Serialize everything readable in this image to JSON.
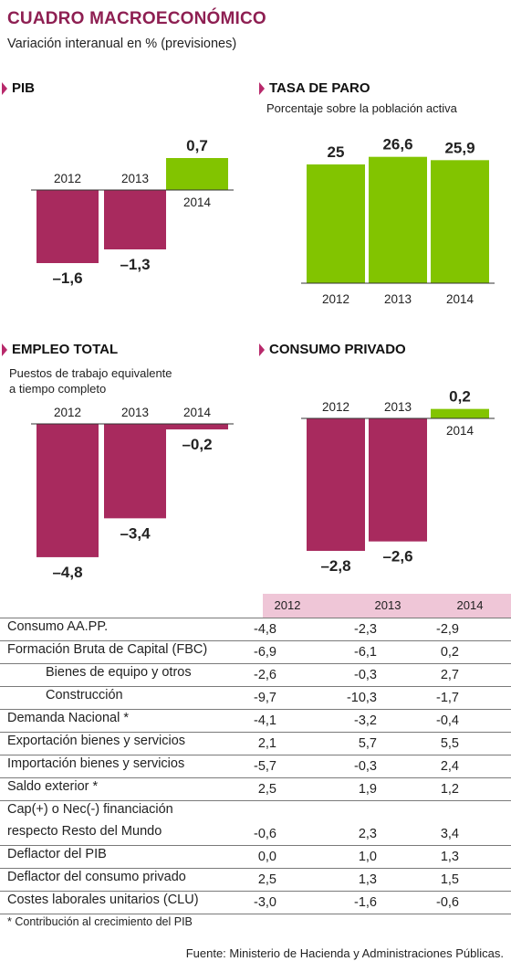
{
  "header": {
    "title": "CUADRO MACROECONÓMICO",
    "subtitle": "Variación interanual en % (previsiones)"
  },
  "colors": {
    "negative": "#a82a5e",
    "positive": "#82c400",
    "accent": "#b8296b",
    "table_header": "#efc6d7"
  },
  "chart_data": [
    {
      "id": "pib",
      "type": "bar",
      "title": "PIB",
      "subtitle": "",
      "categories": [
        "2012",
        "2013",
        "2014"
      ],
      "values": [
        -1.6,
        -1.3,
        0.7
      ],
      "value_labels": [
        "–1,6",
        "–1,3",
        "0,7"
      ]
    },
    {
      "id": "paro",
      "type": "bar",
      "title": "TASA DE PARO",
      "subtitle": "Porcentaje sobre la población activa",
      "categories": [
        "2012",
        "2013",
        "2014"
      ],
      "values": [
        25,
        26.6,
        25.9
      ],
      "value_labels": [
        "25",
        "26,6",
        "25,9"
      ]
    },
    {
      "id": "empleo",
      "type": "bar",
      "title": "EMPLEO TOTAL",
      "subtitle": [
        "Puestos de trabajo equivalente",
        "a tiempo completo"
      ],
      "categories": [
        "2012",
        "2013",
        "2014"
      ],
      "values": [
        -4.8,
        -3.4,
        -0.2
      ],
      "value_labels": [
        "–4,8",
        "–3,4",
        "–0,2"
      ]
    },
    {
      "id": "consumo",
      "type": "bar",
      "title": "CONSUMO PRIVADO",
      "subtitle": "",
      "categories": [
        "2012",
        "2013",
        "2014"
      ],
      "values": [
        -2.8,
        -2.6,
        0.2
      ],
      "value_labels": [
        "–2,8",
        "–2,6",
        "0,2"
      ]
    }
  ],
  "table": {
    "columns": [
      "2012",
      "2013",
      "2014"
    ],
    "rows": [
      {
        "label": "Consumo  AA.PP.",
        "values": [
          "-4,8",
          "-2,3",
          "-2,9"
        ]
      },
      {
        "label": "Formación Bruta de Capital (FBC)",
        "values": [
          "-6,9",
          "-6,1",
          "0,2"
        ]
      },
      {
        "label": "Bienes de equipo y otros",
        "values": [
          "-2,6",
          "-0,3",
          "2,7"
        ]
      },
      {
        "label": "Construcción",
        "values": [
          "-9,7",
          "-10,3",
          "-1,7"
        ]
      },
      {
        "label": "Demanda Nacional *",
        "values": [
          "-4,1",
          "-3,2",
          "-0,4"
        ]
      },
      {
        "label": "Exportación bienes y servicios",
        "values": [
          "2,1",
          "5,7",
          "5,5"
        ]
      },
      {
        "label": "Importación bienes y servicios",
        "values": [
          "-5,7",
          "-0,3",
          "2,4"
        ]
      },
      {
        "label": "Saldo exterior *",
        "values": [
          "2,5",
          "1,9",
          "1,2"
        ]
      },
      {
        "label": "Cap(+) o Nec(-) financiación",
        "label2": "respecto Resto del Mundo",
        "values": [
          "-0,6",
          "2,3",
          "3,4"
        ]
      },
      {
        "label": "Deflactor del PIB",
        "values": [
          "0,0",
          "1,0",
          "1,3"
        ]
      },
      {
        "label": "Deflactor del consumo privado",
        "values": [
          "2,5",
          "1,3",
          "1,5"
        ]
      },
      {
        "label": "Costes laborales unitarios (CLU)",
        "values": [
          "-3,0",
          "-1,6",
          "-0,6"
        ]
      }
    ],
    "footnote": "* Contribución al crecimiento del PIB"
  },
  "footer": {
    "source": "Fuente: Ministerio de Hacienda y Administraciones Públicas."
  }
}
